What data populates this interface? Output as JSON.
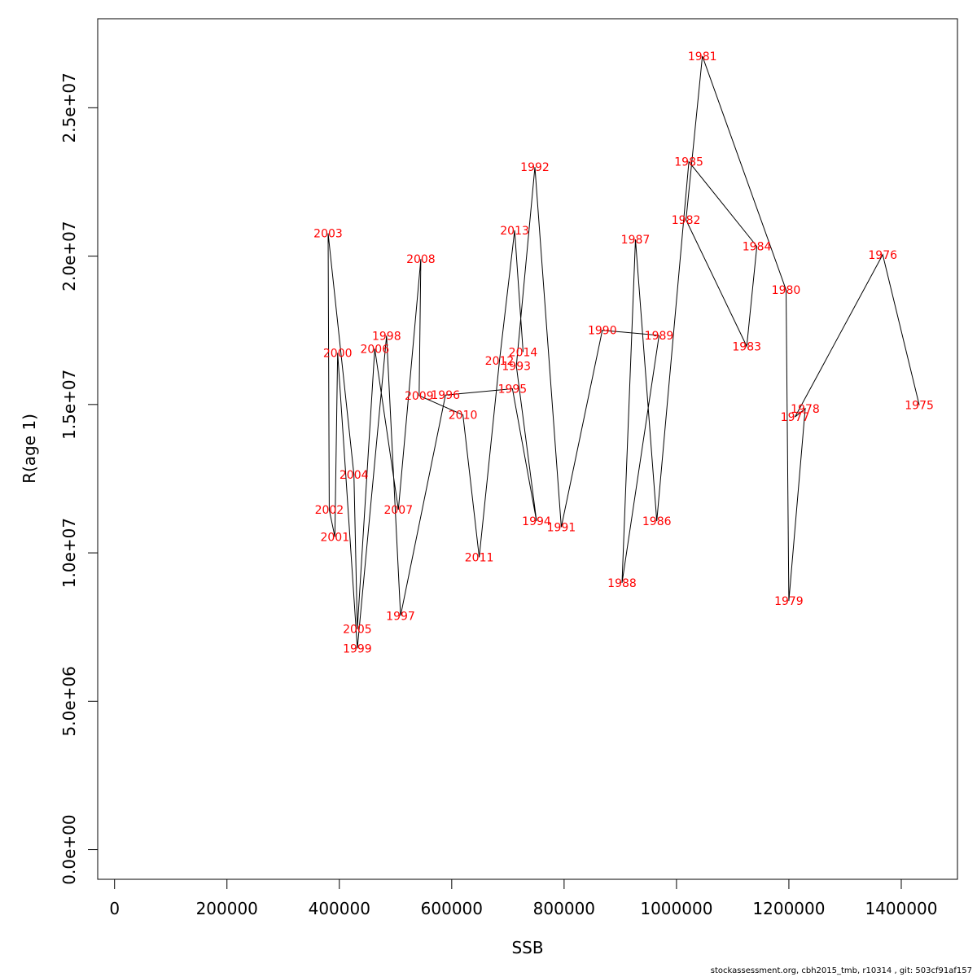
{
  "chart_data": {
    "type": "line",
    "xlabel": "SSB",
    "ylabel": "R(age 1)",
    "xlim": [
      -30000,
      1500000
    ],
    "ylim": [
      -1000000,
      28000000
    ],
    "x_ticks": [
      0,
      200000,
      400000,
      600000,
      800000,
      1000000,
      1200000,
      1400000
    ],
    "x_tick_labels": [
      "0",
      "200000",
      "400000",
      "600000",
      "800000",
      "1000000",
      "1200000",
      "1400000"
    ],
    "y_ticks": [
      0,
      5000000,
      10000000,
      15000000,
      20000000,
      25000000
    ],
    "y_tick_labels": [
      "0.0e+00",
      "5.0e+06",
      "1.0e+07",
      "1.5e+07",
      "2.0e+07",
      "2.5e+07"
    ],
    "line_color": "#000000",
    "label_color": "#ff0000",
    "points": [
      {
        "year": "1975",
        "x": 1432000,
        "y": 14980000
      },
      {
        "year": "1976",
        "x": 1367000,
        "y": 20050000
      },
      {
        "year": "1977",
        "x": 1211000,
        "y": 14580000
      },
      {
        "year": "1978",
        "x": 1229000,
        "y": 14860000
      },
      {
        "year": "1979",
        "x": 1200000,
        "y": 8380000
      },
      {
        "year": "1980",
        "x": 1195000,
        "y": 18860000
      },
      {
        "year": "1981",
        "x": 1046000,
        "y": 26740000
      },
      {
        "year": "1982",
        "x": 1017000,
        "y": 21220000
      },
      {
        "year": "1983",
        "x": 1125000,
        "y": 16960000
      },
      {
        "year": "1984",
        "x": 1143000,
        "y": 20330000
      },
      {
        "year": "1985",
        "x": 1022000,
        "y": 23180000
      },
      {
        "year": "1986",
        "x": 965000,
        "y": 11070000
      },
      {
        "year": "1987",
        "x": 927000,
        "y": 20560000
      },
      {
        "year": "1988",
        "x": 903000,
        "y": 8990000
      },
      {
        "year": "1989",
        "x": 969000,
        "y": 17330000
      },
      {
        "year": "1990",
        "x": 868000,
        "y": 17500000
      },
      {
        "year": "1991",
        "x": 795000,
        "y": 10870000
      },
      {
        "year": "1992",
        "x": 748000,
        "y": 23000000
      },
      {
        "year": "1993",
        "x": 715000,
        "y": 16300000
      },
      {
        "year": "1994",
        "x": 751000,
        "y": 11070000
      },
      {
        "year": "1995",
        "x": 708000,
        "y": 15530000
      },
      {
        "year": "1996",
        "x": 589000,
        "y": 15320000
      },
      {
        "year": "1997",
        "x": 509000,
        "y": 7880000
      },
      {
        "year": "1998",
        "x": 484000,
        "y": 17320000
      },
      {
        "year": "1999",
        "x": 432000,
        "y": 6780000
      },
      {
        "year": "2000",
        "x": 397000,
        "y": 16740000
      },
      {
        "year": "2001",
        "x": 392000,
        "y": 10540000
      },
      {
        "year": "2002",
        "x": 382000,
        "y": 11450000
      },
      {
        "year": "2003",
        "x": 380000,
        "y": 20770000
      },
      {
        "year": "2004",
        "x": 426000,
        "y": 12640000
      },
      {
        "year": "2005",
        "x": 432000,
        "y": 7430000
      },
      {
        "year": "2006",
        "x": 463000,
        "y": 16880000
      },
      {
        "year": "2007",
        "x": 505000,
        "y": 11460000
      },
      {
        "year": "2008",
        "x": 545000,
        "y": 19900000
      },
      {
        "year": "2009",
        "x": 542000,
        "y": 15300000
      },
      {
        "year": "2010",
        "x": 620000,
        "y": 14650000
      },
      {
        "year": "2011",
        "x": 649000,
        "y": 9850000
      },
      {
        "year": "2012",
        "x": 685000,
        "y": 16480000
      },
      {
        "year": "2013",
        "x": 712000,
        "y": 20870000
      },
      {
        "year": "2014",
        "x": 727000,
        "y": 16770000
      }
    ]
  },
  "footer_text": "stockassessment.org, cbh2015_tmb, r10314 , git: 503cf91af157"
}
